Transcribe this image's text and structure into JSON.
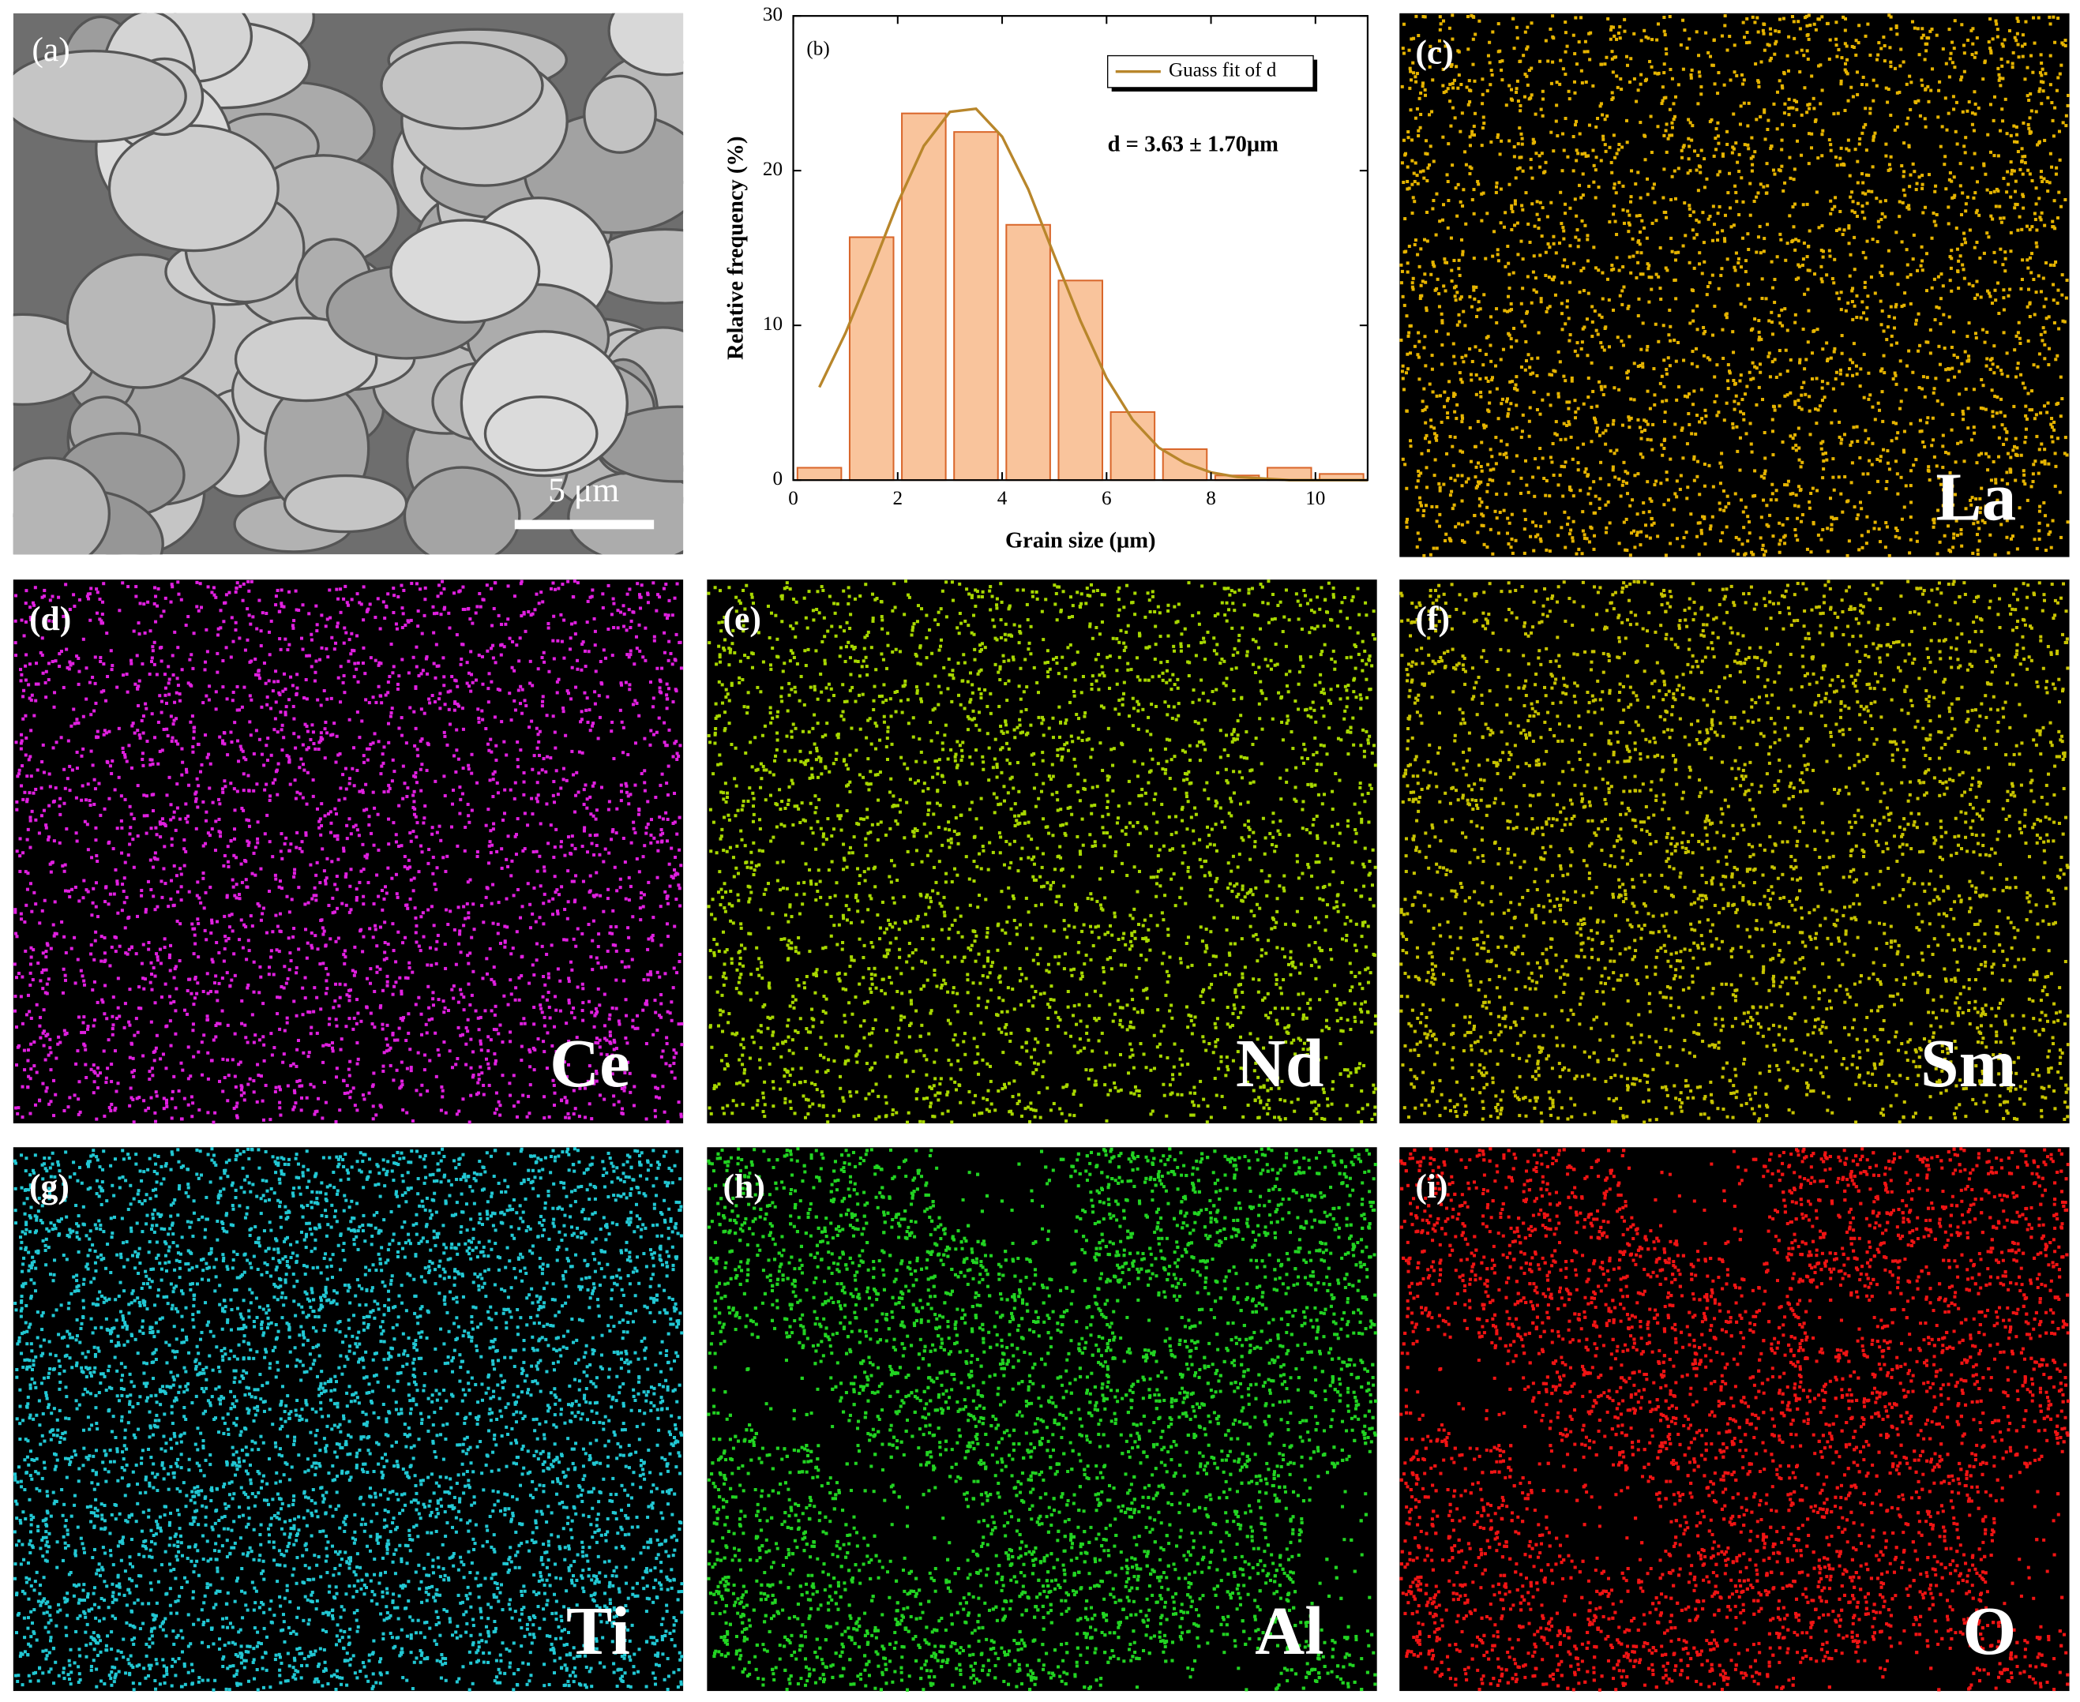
{
  "chart_data": {
    "type": "histogram",
    "panel_label": "(b)",
    "xlabel": "Grain size (μm)",
    "ylabel": "Relative frequency (%)",
    "bins": [
      0,
      1,
      2,
      3,
      4,
      5,
      6,
      7,
      8,
      9,
      10,
      11
    ],
    "values": [
      0.8,
      15.7,
      23.7,
      22.5,
      16.5,
      12.9,
      4.4,
      2.0,
      0.3,
      0.8,
      0.4
    ],
    "color": "#f9c49c",
    "edgecolor": "#d9662a",
    "fit": {
      "name": "Guass fit of d",
      "color": "#b8862b",
      "x": [
        0.5,
        1,
        1.5,
        2,
        2.5,
        3,
        3.5,
        4,
        4.5,
        5,
        5.5,
        6,
        6.5,
        7,
        7.5,
        8,
        8.5,
        9,
        9.5,
        10,
        10.5,
        11
      ],
      "values": [
        6.0,
        9.5,
        13.6,
        17.9,
        21.6,
        23.8,
        24.0,
        22.2,
        18.8,
        14.5,
        10.3,
        6.6,
        3.9,
        2.1,
        1.1,
        0.5,
        0.2,
        0.1,
        0.0,
        0.0,
        0.0,
        0.0
      ]
    },
    "annotation": "d = 3.63 ± 1.70μm",
    "legend": "upper right",
    "xlim": [
      0,
      11
    ],
    "ylim": [
      0,
      30
    ],
    "xticks": [
      0,
      2,
      4,
      6,
      8,
      10
    ],
    "yticks": [
      0,
      10,
      20,
      30
    ]
  },
  "sem": {
    "label": "(a)",
    "scale_bar": "5 μm"
  },
  "maps": [
    {
      "label": "(c)",
      "element": "La",
      "color": "#e6b400"
    },
    {
      "label": "(d)",
      "element": "Ce",
      "color": "#e020e0"
    },
    {
      "label": "(e)",
      "element": "Nd",
      "color": "#a8d800"
    },
    {
      "label": "(f)",
      "element": "Sm",
      "color": "#c8c400"
    },
    {
      "label": "(g)",
      "element": "Ti",
      "color": "#22c8d4"
    },
    {
      "label": "(h)",
      "element": "Al",
      "color": "#22d422"
    },
    {
      "label": "(i)",
      "element": "O",
      "color": "#f01414"
    }
  ]
}
